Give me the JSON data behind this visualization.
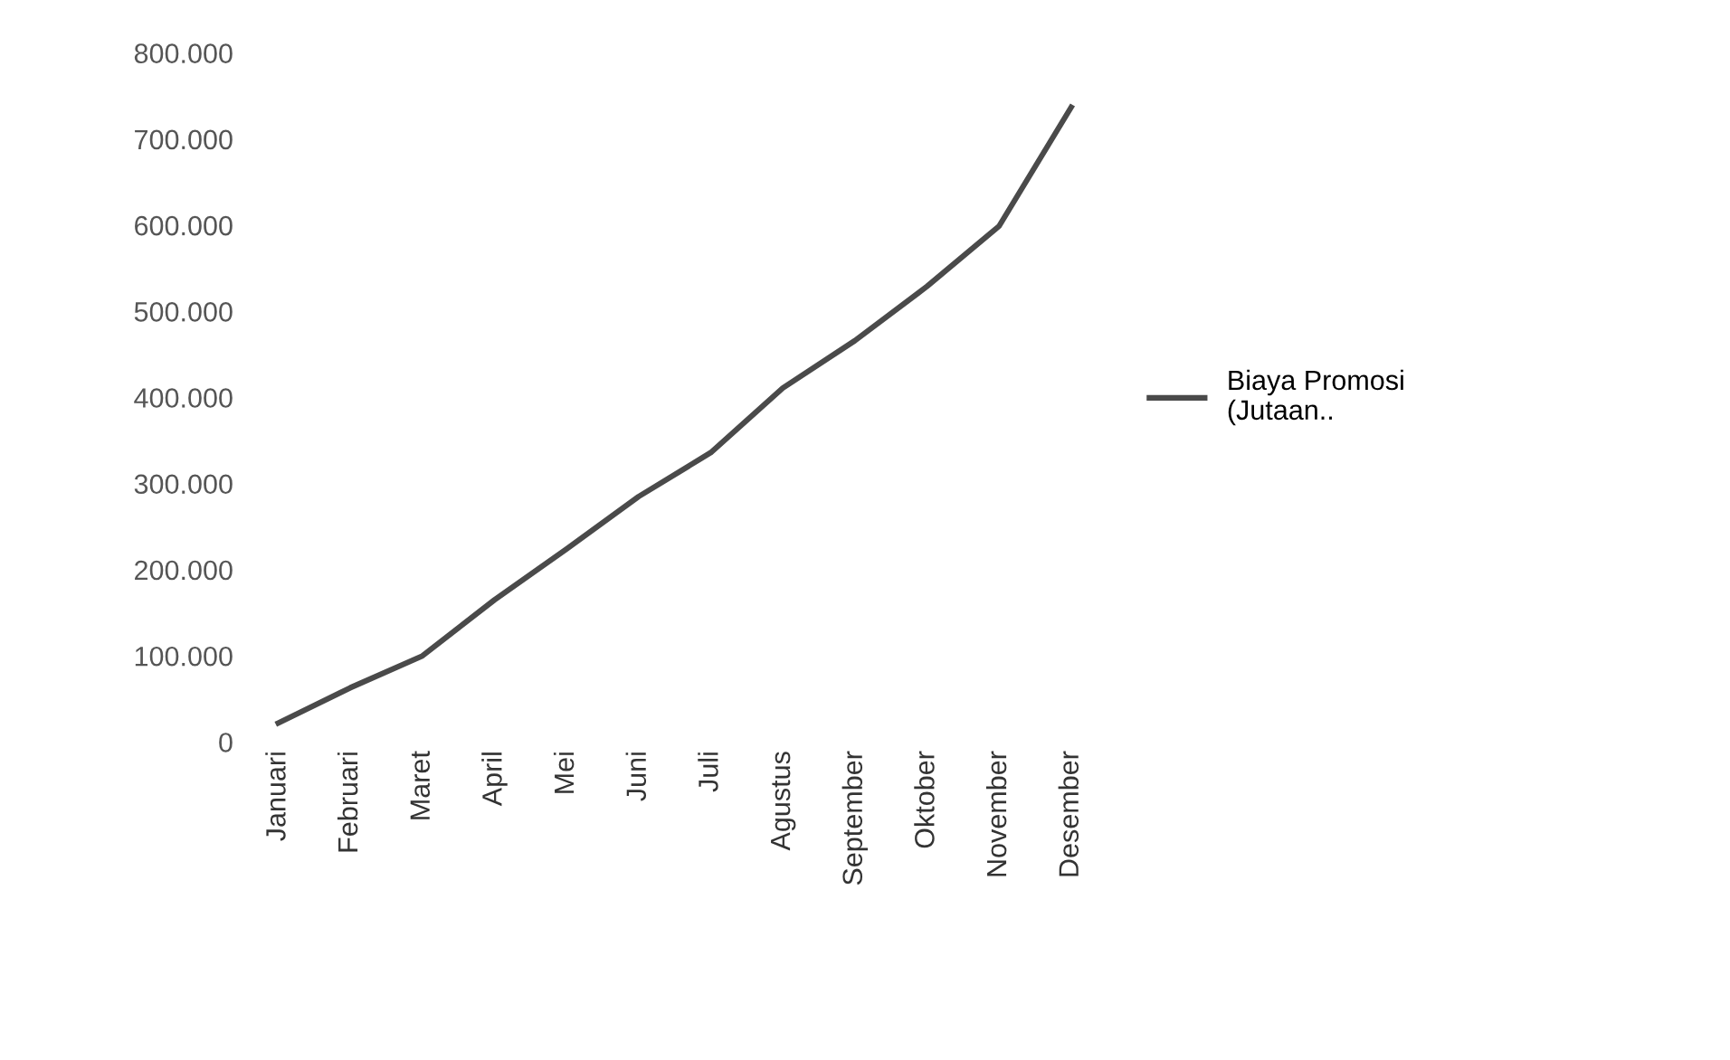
{
  "chart_data": {
    "type": "line",
    "categories": [
      "Januari",
      "Februari",
      "Maret",
      "April",
      "Mei",
      "Juni",
      "Juli",
      "Agustus",
      "September",
      "Oktober",
      "November",
      "Desember"
    ],
    "series": [
      {
        "name": "Biaya Promosi\n(Jutaan..",
        "color": "#4a4a4a",
        "values": [
          22000,
          63000,
          100000,
          165000,
          224000,
          285000,
          336000,
          411000,
          466000,
          529000,
          599000,
          737000
        ]
      }
    ],
    "ylim": [
      0,
      800000
    ],
    "yticks": [
      {
        "value": 0,
        "label": "0"
      },
      {
        "value": 100000,
        "label": "100.000"
      },
      {
        "value": 200000,
        "label": "200.000"
      },
      {
        "value": 300000,
        "label": "300.000"
      },
      {
        "value": 400000,
        "label": "400.000"
      },
      {
        "value": 500000,
        "label": "500.000"
      },
      {
        "value": 600000,
        "label": "600.000"
      },
      {
        "value": 700000,
        "label": "700.000"
      },
      {
        "value": 800000,
        "label": "800.000"
      }
    ],
    "grid": false,
    "legend": "right",
    "marker": "none",
    "line_style": "solid"
  }
}
